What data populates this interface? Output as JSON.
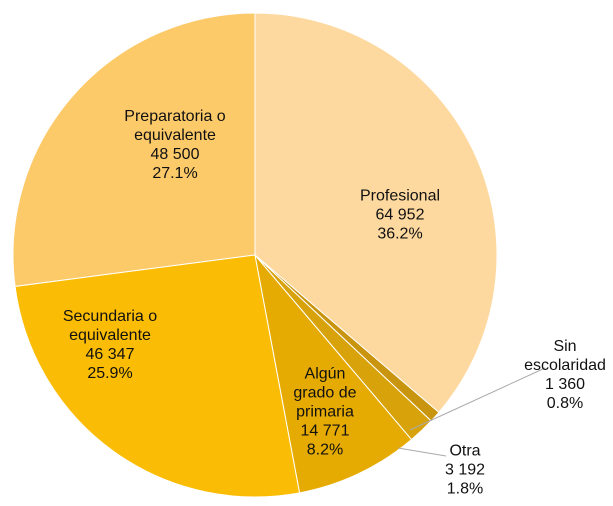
{
  "chart_data": {
    "type": "pie",
    "categories": [
      "Profesional",
      "Sin escolaridad",
      "Otra",
      "Algún grado de primaria",
      "Secundaria o equivalente",
      "Preparatoria o equivalente"
    ],
    "values": [
      64952,
      1360,
      3192,
      14771,
      46347,
      48500
    ],
    "value_labels": [
      "64 952",
      "1 360",
      "3 192",
      "14 771",
      "46 347",
      "48 500"
    ],
    "percentages": [
      36.2,
      0.8,
      1.8,
      8.2,
      25.9,
      27.1
    ],
    "percentage_labels": [
      "36.2%",
      "0.8%",
      "1.8%",
      "8.2%",
      "25.9%",
      "27.1%"
    ],
    "colors": [
      "#fdd9a0",
      "#c9950e",
      "#d8a20a",
      "#e6ab02",
      "#fbbc05",
      "#fdca6a"
    ]
  }
}
